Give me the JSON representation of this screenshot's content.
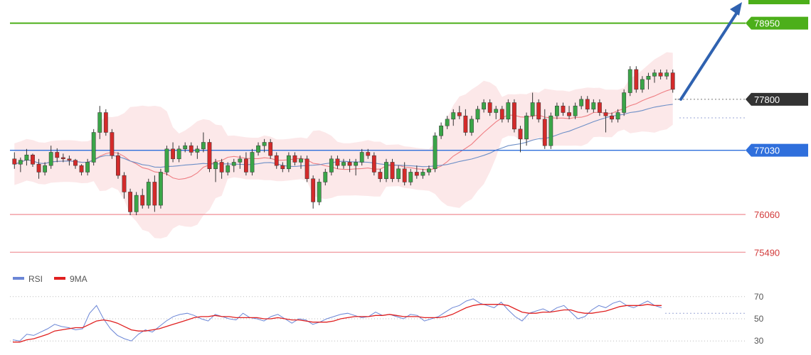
{
  "chart_data": [
    {
      "type": "candlestick",
      "title": "",
      "ylim": [
        75300,
        79300
      ],
      "bollinger": true,
      "moving_averages": [
        "short",
        "long"
      ],
      "levels": [
        {
          "value": 78950,
          "label": "78950",
          "color": "#4caf1a",
          "label_bg": "#4caf1a",
          "label_fg": "#ffffff"
        },
        {
          "value": 77800,
          "label": "77800",
          "color": "#555555",
          "dotted": true,
          "label_bg": "#333333",
          "label_fg": "#ffffff"
        },
        {
          "value": 77030,
          "label": "77030",
          "color": "#2f6fdc",
          "label_bg": "#2f6fdc",
          "label_fg": "#ffffff"
        },
        {
          "value": 76060,
          "label": "76060",
          "color": "#f2a0a6",
          "label_bg": "none",
          "label_fg": "#d23a3a"
        },
        {
          "value": 75490,
          "label": "75490",
          "color": "#f2a0a6",
          "label_bg": "none",
          "label_fg": "#d23a3a"
        }
      ],
      "candles": [
        [
          76900,
          77000,
          76750,
          76820
        ],
        [
          76820,
          76920,
          76700,
          76880
        ],
        [
          76880,
          77050,
          76800,
          76960
        ],
        [
          76960,
          76980,
          76780,
          76820
        ],
        [
          76820,
          76900,
          76600,
          76700
        ],
        [
          76700,
          76850,
          76650,
          76800
        ],
        [
          76800,
          77100,
          76750,
          77000
        ],
        [
          77000,
          77060,
          76850,
          76920
        ],
        [
          76920,
          76980,
          76850,
          76900
        ],
        [
          76900,
          76950,
          76800,
          76880
        ],
        [
          76880,
          76900,
          76750,
          76800
        ],
        [
          76800,
          76820,
          76650,
          76700
        ],
        [
          76700,
          76900,
          76650,
          76850
        ],
        [
          76850,
          77350,
          76800,
          77300
        ],
        [
          77300,
          77700,
          77200,
          77600
        ],
        [
          77600,
          77650,
          77250,
          77300
        ],
        [
          77300,
          77350,
          76900,
          76950
        ],
        [
          76950,
          77000,
          76600,
          76650
        ],
        [
          76650,
          76700,
          76300,
          76400
        ],
        [
          76400,
          76450,
          76050,
          76100
        ],
        [
          76100,
          76400,
          76050,
          76350
        ],
        [
          76350,
          76450,
          76150,
          76200
        ],
        [
          76200,
          76600,
          76150,
          76550
        ],
        [
          76550,
          76650,
          76100,
          76200
        ],
        [
          76200,
          76750,
          76150,
          76700
        ],
        [
          76700,
          77100,
          76650,
          77050
        ],
        [
          77050,
          77150,
          76850,
          76900
        ],
        [
          76900,
          77100,
          76850,
          77050
        ],
        [
          77050,
          77150,
          77000,
          77100
        ],
        [
          77100,
          77150,
          76950,
          77000
        ],
        [
          77000,
          77100,
          76900,
          77050
        ],
        [
          77050,
          77300,
          77000,
          77150
        ],
        [
          77150,
          77200,
          76700,
          76750
        ],
        [
          76750,
          76900,
          76550,
          76850
        ],
        [
          76850,
          76900,
          76600,
          76700
        ],
        [
          76700,
          76850,
          76650,
          76800
        ],
        [
          76800,
          76900,
          76700,
          76850
        ],
        [
          76850,
          76950,
          76750,
          76900
        ],
        [
          76900,
          77000,
          76650,
          76700
        ],
        [
          76700,
          77050,
          76650,
          77000
        ],
        [
          77000,
          77150,
          76950,
          77100
        ],
        [
          77100,
          77200,
          77000,
          77150
        ],
        [
          77150,
          77200,
          76900,
          76950
        ],
        [
          76950,
          77000,
          76750,
          76800
        ],
        [
          76800,
          76850,
          76700,
          76750
        ],
        [
          76750,
          77000,
          76700,
          76950
        ],
        [
          76950,
          77000,
          76800,
          76850
        ],
        [
          76850,
          76950,
          76750,
          76900
        ],
        [
          76900,
          76950,
          76550,
          76600
        ],
        [
          76600,
          76650,
          76150,
          76250
        ],
        [
          76250,
          76600,
          76200,
          76550
        ],
        [
          76550,
          76750,
          76500,
          76700
        ],
        [
          76700,
          76950,
          76650,
          76900
        ],
        [
          76900,
          76950,
          76750,
          76800
        ],
        [
          76800,
          76900,
          76750,
          76850
        ],
        [
          76850,
          76900,
          76700,
          76800
        ],
        [
          76800,
          76900,
          76650,
          76850
        ],
        [
          76850,
          77050,
          76800,
          77000
        ],
        [
          77000,
          77050,
          76900,
          76950
        ],
        [
          76950,
          77000,
          76650,
          76700
        ],
        [
          76700,
          76750,
          76550,
          76600
        ],
        [
          76600,
          76900,
          76550,
          76850
        ],
        [
          76850,
          76900,
          76550,
          76600
        ],
        [
          76600,
          76800,
          76550,
          76750
        ],
        [
          76750,
          76850,
          76500,
          76550
        ],
        [
          76550,
          76750,
          76500,
          76700
        ],
        [
          76700,
          76800,
          76600,
          76650
        ],
        [
          76650,
          76750,
          76600,
          76700
        ],
        [
          76700,
          76800,
          76650,
          76750
        ],
        [
          76750,
          77300,
          76700,
          77250
        ],
        [
          77250,
          77450,
          77200,
          77400
        ],
        [
          77400,
          77550,
          77350,
          77500
        ],
        [
          77500,
          77650,
          77400,
          77600
        ],
        [
          77600,
          77700,
          77500,
          77550
        ],
        [
          77550,
          77650,
          77250,
          77300
        ],
        [
          77300,
          77550,
          77250,
          77500
        ],
        [
          77500,
          77700,
          77450,
          77650
        ],
        [
          77650,
          77800,
          77600,
          77750
        ],
        [
          77750,
          77800,
          77550,
          77600
        ],
        [
          77600,
          77700,
          77500,
          77650
        ],
        [
          77650,
          77700,
          77450,
          77500
        ],
        [
          77500,
          77800,
          77450,
          77750
        ],
        [
          77750,
          77800,
          77300,
          77350
        ],
        [
          77350,
          77400,
          77000,
          77200
        ],
        [
          77200,
          77600,
          77100,
          77550
        ],
        [
          77550,
          77900,
          77500,
          77750
        ],
        [
          77750,
          77800,
          77450,
          77500
        ],
        [
          77500,
          77650,
          77050,
          77100
        ],
        [
          77100,
          77600,
          77050,
          77550
        ],
        [
          77550,
          77750,
          77500,
          77700
        ],
        [
          77700,
          77750,
          77550,
          77600
        ],
        [
          77600,
          77700,
          77500,
          77550
        ],
        [
          77550,
          77750,
          77500,
          77700
        ],
        [
          77700,
          77850,
          77650,
          77800
        ],
        [
          77800,
          77850,
          77600,
          77650
        ],
        [
          77650,
          77800,
          77600,
          77750
        ],
        [
          77750,
          77800,
          77550,
          77600
        ],
        [
          77600,
          77650,
          77300,
          77550
        ],
        [
          77550,
          77600,
          77450,
          77500
        ],
        [
          77500,
          77650,
          77450,
          77600
        ],
        [
          77600,
          77950,
          77550,
          77900
        ],
        [
          77900,
          78300,
          77850,
          78250
        ],
        [
          78250,
          78300,
          77900,
          77950
        ],
        [
          77950,
          78150,
          77900,
          78100
        ],
        [
          78100,
          78200,
          77950,
          78150
        ],
        [
          78150,
          78250,
          78050,
          78200
        ],
        [
          78200,
          78250,
          78100,
          78150
        ],
        [
          78150,
          78250,
          78100,
          78200
        ],
        [
          78200,
          78250,
          77900,
          77950
        ]
      ],
      "arrow": {
        "from_value": 77800,
        "to_value": 79250
      }
    },
    {
      "type": "line",
      "series": [
        {
          "name": "RSI",
          "color": "#6b86d6",
          "values": [
            31,
            30,
            36,
            35,
            38,
            41,
            45,
            43,
            42,
            40,
            41,
            55,
            62,
            50,
            41,
            35,
            32,
            30,
            36,
            40,
            38,
            43,
            48,
            52,
            54,
            55,
            53,
            50,
            48,
            54,
            52,
            50,
            49,
            55,
            51,
            50,
            48,
            52,
            54,
            50,
            46,
            50,
            49,
            45,
            47,
            50,
            52,
            54,
            55,
            53,
            51,
            52,
            56,
            53,
            54,
            52,
            50,
            54,
            53,
            48,
            50,
            52,
            56,
            60,
            62,
            66,
            68,
            64,
            62,
            60,
            65,
            58,
            52,
            48,
            55,
            57,
            59,
            56,
            60,
            62,
            56,
            50,
            52,
            58,
            62,
            60,
            64,
            66,
            62,
            60,
            63,
            66,
            62,
            60
          ]
        },
        {
          "name": "9MA",
          "color": "#e02020",
          "values": [
            29,
            29,
            31,
            32,
            34,
            36,
            39,
            40,
            41,
            42,
            42,
            45,
            48,
            49,
            48,
            46,
            43,
            40,
            39,
            39,
            40,
            41,
            43,
            45,
            47,
            49,
            51,
            52,
            52,
            53,
            52,
            52,
            51,
            51,
            51,
            51,
            50,
            50,
            51,
            50,
            49,
            49,
            48,
            47,
            47,
            47,
            48,
            50,
            51,
            52,
            52,
            52,
            53,
            53,
            54,
            53,
            52,
            52,
            52,
            51,
            51,
            51,
            52,
            54,
            57,
            60,
            62,
            63,
            63,
            63,
            63,
            62,
            59,
            56,
            55,
            55,
            56,
            56,
            57,
            58,
            58,
            56,
            55,
            55,
            56,
            57,
            59,
            61,
            62,
            62,
            62,
            63,
            62,
            62
          ]
        }
      ],
      "ylim": [
        25,
        75
      ],
      "y_ticks": [
        70,
        50,
        30
      ],
      "guides": [
        70,
        50,
        30
      ],
      "dotted_guide": 55,
      "legend_placement": "top-left"
    }
  ],
  "legend": {
    "rsi_label": "RSI",
    "ma_label": "9MA",
    "rsi_color": "#6b86d6",
    "ma_color": "#e02020"
  },
  "colors": {
    "bull": "#3aa548",
    "bear": "#d42a2a",
    "band_fill": "#fbe0e2",
    "ma_short": "#ef7f84",
    "ma_long": "#6d8fc7",
    "arrow": "#2f62b0"
  }
}
